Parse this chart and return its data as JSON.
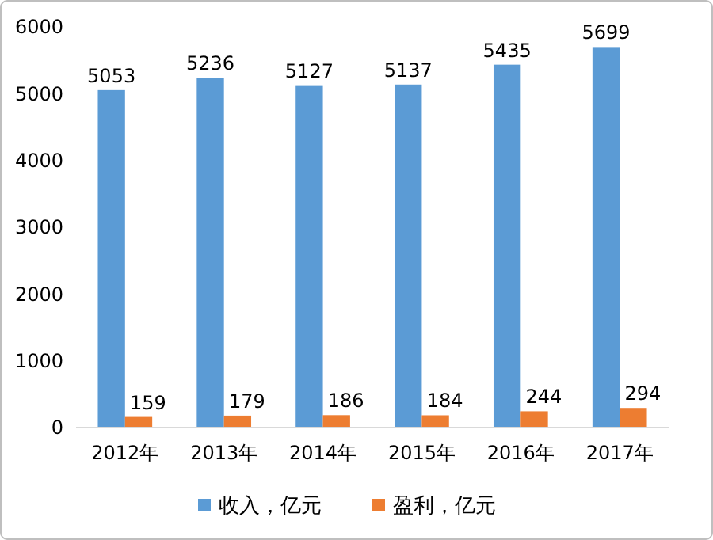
{
  "chart_data": {
    "type": "bar",
    "categories": [
      "2012年",
      "2013年",
      "2014年",
      "2015年",
      "2016年",
      "2017年"
    ],
    "series": [
      {
        "name": "收入，亿元",
        "color": "#5b9bd5",
        "values": [
          5053,
          5236,
          5127,
          5137,
          5435,
          5699
        ]
      },
      {
        "name": "盈利，亿元",
        "color": "#ed7d31",
        "values": [
          159,
          179,
          186,
          184,
          244,
          294
        ]
      }
    ],
    "ylim": [
      0,
      6000
    ],
    "yticks": [
      0,
      1000,
      2000,
      3000,
      4000,
      5000,
      6000
    ],
    "data_labels": true,
    "legend": "bottom",
    "grid": false
  }
}
